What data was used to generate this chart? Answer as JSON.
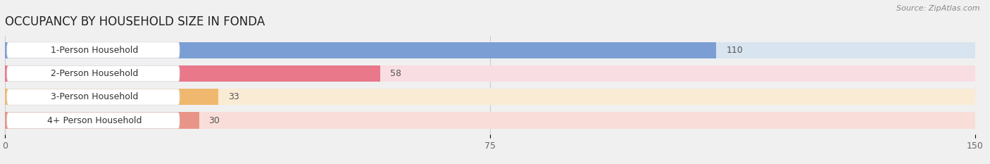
{
  "title": "OCCUPANCY BY HOUSEHOLD SIZE IN FONDA",
  "source": "Source: ZipAtlas.com",
  "categories": [
    "1-Person Household",
    "2-Person Household",
    "3-Person Household",
    "4+ Person Household"
  ],
  "values": [
    110,
    58,
    33,
    30
  ],
  "bar_colors": [
    "#7b9fd4",
    "#e8788a",
    "#f0b86e",
    "#e89488"
  ],
  "bar_bg_colors": [
    "#d8e4f0",
    "#f8dde2",
    "#faebd4",
    "#f8ddd8"
  ],
  "xlim_max": 150,
  "xticks": [
    0,
    75,
    150
  ],
  "figsize": [
    14.06,
    2.33
  ],
  "dpi": 100,
  "title_fontsize": 12,
  "label_fontsize": 9,
  "value_fontsize": 9,
  "tick_fontsize": 9,
  "background_color": "#f0f0f0",
  "plot_bg_color": "#f0f0f0"
}
